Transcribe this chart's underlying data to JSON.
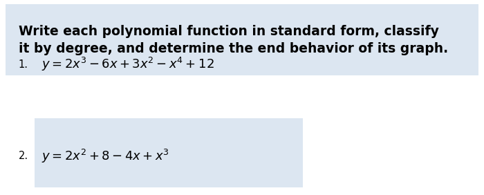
{
  "title_line1": "Write each polynomial function in standard form, classify",
  "title_line2": "it by degree, and determine the end behavior of its graph.",
  "title_bg_color": "#dce6f1",
  "title_fontsize": 13.5,
  "eq1_number": "1.",
  "eq1_text": "$y = 2x^3 - 6x + 3x^2 - x^4 + 12$",
  "eq2_number": "2.",
  "eq2_text": "$y = 2x^2 + 8 - 4x + x^3$",
  "eq_bg_color": "#dce6f1",
  "eq_fontsize": 13.0,
  "num_fontsize": 10.5,
  "bg_color": "#ffffff"
}
